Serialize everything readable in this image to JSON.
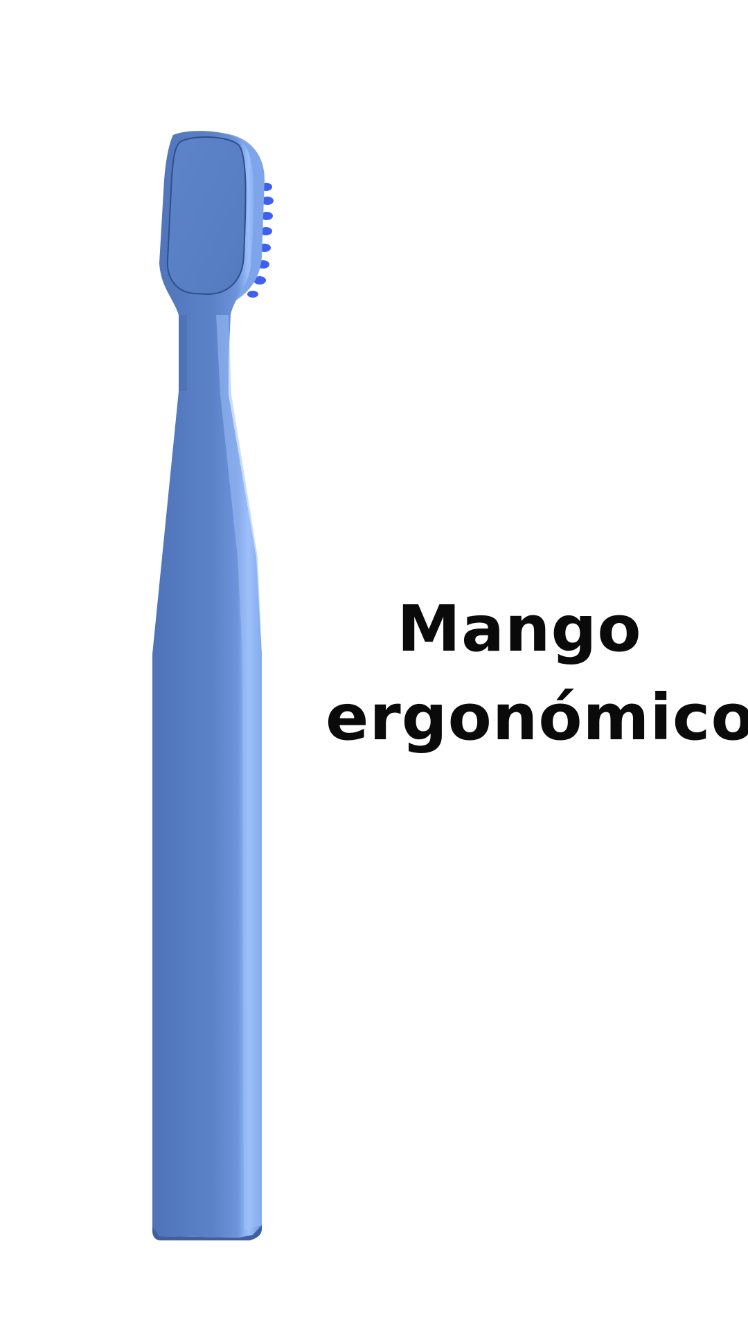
{
  "caption": {
    "line1": "Mango",
    "line2": "ergonómico"
  },
  "product": {
    "icon": "toothbrush-icon",
    "body_color": "#5b82c7",
    "highlight_color": "#8fb4f5",
    "bristle_color": "#3f5ff0"
  }
}
